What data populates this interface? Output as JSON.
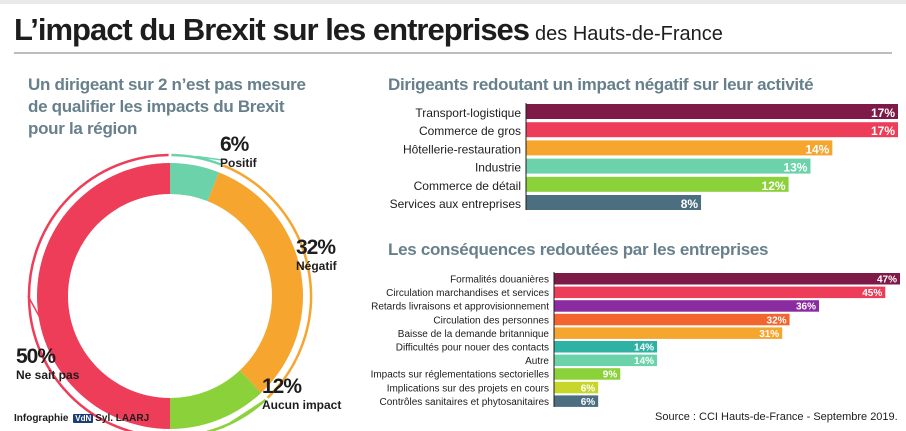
{
  "header": {
    "title_main": "L’impact du Brexit sur les entreprises",
    "title_sub": "des Hauts-de-France"
  },
  "donut": {
    "heading_lines": [
      "Un dirigeant sur 2 n’est pas mesure",
      "de qualifier les impacts du Brexit",
      "pour la région"
    ]
  },
  "chart_data": [
    {
      "type": "pie",
      "variant": "donut",
      "title": "Un dirigeant sur 2 n’est pas mesure de qualifier les impacts du Brexit pour la région",
      "slices": [
        {
          "label": "Positif",
          "value": 6,
          "display": "6%",
          "color": "#6bd2aa"
        },
        {
          "label": "Négatif",
          "value": 32,
          "display": "32%",
          "color": "#f6a52f"
        },
        {
          "label": "Aucun impact",
          "value": 12,
          "display": "12%",
          "color": "#8bd13a"
        },
        {
          "label": "Ne sait pas",
          "value": 50,
          "display": "50%",
          "color": "#ee3d59"
        }
      ]
    },
    {
      "type": "bar",
      "orientation": "horizontal",
      "title": "Dirigeants redoutant un impact négatif sur leur activité",
      "xlim": [
        0,
        17
      ],
      "categories": [
        "Transport-logistique",
        "Commerce de gros",
        "Hôtellerie-restauration",
        "Industrie",
        "Commerce de détail",
        "Services aux entreprises"
      ],
      "values": [
        17,
        17,
        14,
        13,
        12,
        8
      ],
      "value_labels": [
        "17%",
        "17%",
        "14%",
        "13%",
        "12%",
        "8%"
      ],
      "colors": [
        "#7e1a48",
        "#ee3d59",
        "#f6a52f",
        "#6bd2aa",
        "#8bd13a",
        "#4b6f80"
      ]
    },
    {
      "type": "bar",
      "orientation": "horizontal",
      "title": "Les conséquences redoutées par les entreprises",
      "xlim": [
        0,
        47
      ],
      "categories": [
        "Formalités douanières",
        "Circulation marchandises et services",
        "Retards livraisons et approvisionnement",
        "Circulation des personnes",
        "Baisse de la demande britannique",
        "Difficultés pour nouer des contacts",
        "Autre",
        "Impacts sur réglementations sectorielles",
        "Implications sur des projets en cours",
        "Contrôles sanitaires et phytosanitaires"
      ],
      "values": [
        47,
        45,
        36,
        32,
        31,
        14,
        14,
        9,
        6,
        6
      ],
      "value_labels": [
        "47%",
        "45%",
        "36%",
        "32%",
        "31%",
        "14%",
        "14%",
        "9%",
        "6%",
        "6%"
      ],
      "colors": [
        "#7e1a48",
        "#ee3d59",
        "#8a2ca0",
        "#f2652f",
        "#f6a52f",
        "#2fb2a4",
        "#6bd2aa",
        "#8bd13a",
        "#c7d62a",
        "#4b6f80"
      ]
    }
  ],
  "footer": {
    "credit_prefix": "Infographie",
    "credit_brand": "VdN",
    "credit_author": "Syl. LAARJ",
    "source": "Source : CCI Hauts-de-France - Septembre 2019."
  }
}
